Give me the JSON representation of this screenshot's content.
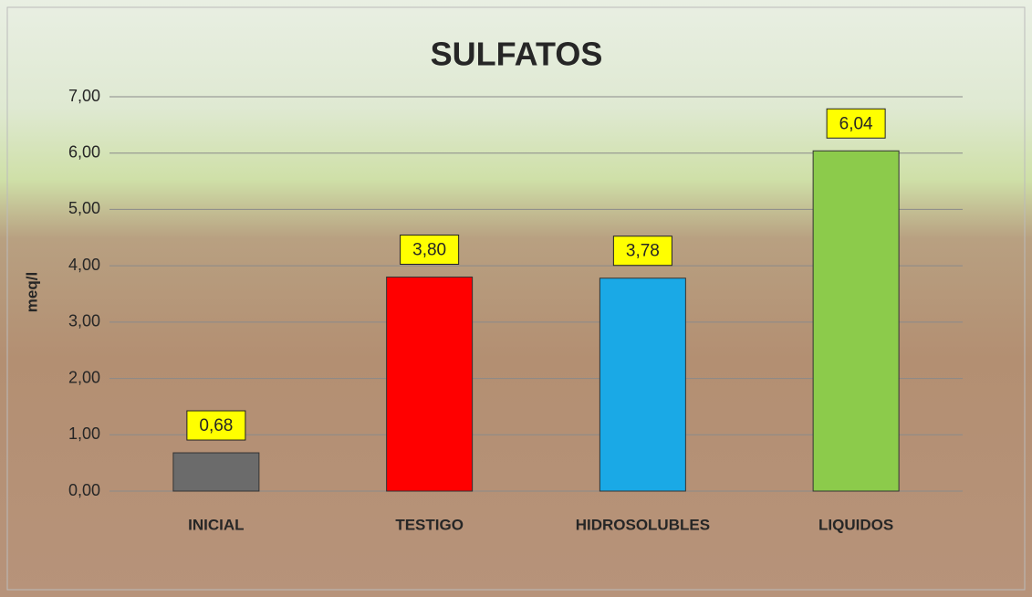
{
  "chart_data": {
    "type": "bar",
    "title": "SULFATOS",
    "y_label": "meq/l",
    "categories": [
      "INICIAL",
      "TESTIGO",
      "HIDROSOLUBLES",
      "LIQUIDOS"
    ],
    "values": [
      0.68,
      3.8,
      3.78,
      6.04
    ],
    "value_labels": [
      "0,68",
      "3,80",
      "3,78",
      "6,04"
    ],
    "colors": [
      "#6b6b6b",
      "#ff0000",
      "#1aa9e6",
      "#8ccb4b"
    ],
    "ylim": [
      0,
      7
    ],
    "yticks": [
      {
        "value": 0,
        "label": "0,00"
      },
      {
        "value": 1,
        "label": "1,00"
      },
      {
        "value": 2,
        "label": "2,00"
      },
      {
        "value": 3,
        "label": "3,00"
      },
      {
        "value": 4,
        "label": "4,00"
      },
      {
        "value": 5,
        "label": "5,00"
      },
      {
        "value": 6,
        "label": "6,00"
      },
      {
        "value": 7,
        "label": "7,00"
      }
    ],
    "grid": true
  }
}
